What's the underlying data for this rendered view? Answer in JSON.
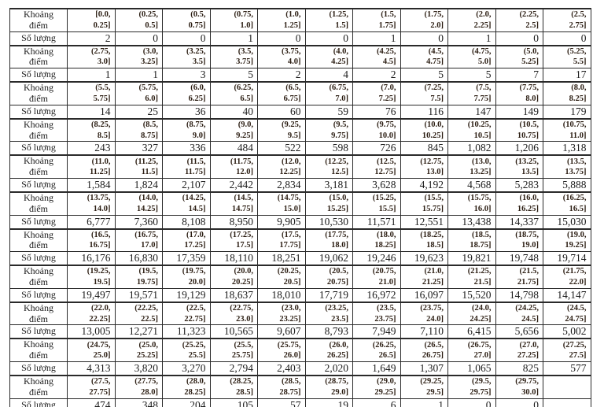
{
  "table": {
    "interval_label_lines": [
      "Khoảng",
      "điểm"
    ],
    "count_label": "Số lượng",
    "pairs": [
      {
        "intervals": [
          "[0.0, 0.25]",
          "(0.25, 0.5]",
          "(0.5, 0.75]",
          "(0.75, 1.0]",
          "(1.0, 1.25]",
          "(1.25, 1.5]",
          "(1.5, 1.75]",
          "(1.75, 2.0]",
          "(2.0, 2.25]",
          "(2.25, 2.5]",
          "(2.5, 2.75]"
        ],
        "counts": [
          "2",
          "0",
          "0",
          "1",
          "0",
          "0",
          "1",
          "0",
          "1",
          "0",
          "0"
        ]
      },
      {
        "intervals": [
          "(2.75, 3.0]",
          "(3.0, 3.25]",
          "(3.25, 3.5]",
          "(3.5, 3.75]",
          "(3.75, 4.0]",
          "(4.0, 4.25]",
          "(4.25, 4.5]",
          "(4.5, 4.75]",
          "(4.75, 5.0]",
          "(5.0, 5.25]",
          "(5.25, 5.5]"
        ],
        "counts": [
          "1",
          "1",
          "3",
          "5",
          "2",
          "4",
          "2",
          "5",
          "5",
          "7",
          "17"
        ]
      },
      {
        "intervals": [
          "(5.5, 5.75]",
          "(5.75, 6.0]",
          "(6.0, 6.25]",
          "(6.25, 6.5]",
          "(6.5, 6.75]",
          "(6.75, 7.0]",
          "(7.0, 7.25]",
          "(7.25, 7.5]",
          "(7.5, 7.75]",
          "(7.75, 8.0]",
          "(8.0, 8.25]"
        ],
        "counts": [
          "14",
          "25",
          "36",
          "40",
          "60",
          "59",
          "76",
          "116",
          "147",
          "149",
          "179"
        ]
      },
      {
        "intervals": [
          "(8.25, 8.5]",
          "(8.5, 8.75]",
          "(8.75, 9.0]",
          "(9.0, 9.25]",
          "(9.25, 9.5]",
          "(9.5, 9.75]",
          "(9.75, 10.0]",
          "(10.0, 10.25]",
          "(10.25, 10.5]",
          "(10.5, 10.75]",
          "(10.75, 11.0]"
        ],
        "counts": [
          "243",
          "327",
          "336",
          "484",
          "522",
          "598",
          "726",
          "845",
          "1,082",
          "1,206",
          "1,318"
        ]
      },
      {
        "intervals": [
          "(11.0, 11.25]",
          "(11.25, 11.5]",
          "(11.5, 11.75]",
          "(11.75, 12.0]",
          "(12.0, 12.25]",
          "(12.25, 12.5]",
          "(12.5, 12.75]",
          "(12.75, 13.0]",
          "(13.0, 13.25]",
          "(13.25, 13.5]",
          "(13.5, 13.75]"
        ],
        "counts": [
          "1,584",
          "1,824",
          "2,107",
          "2,442",
          "2,834",
          "3,181",
          "3,628",
          "4,192",
          "4,568",
          "5,283",
          "5,888"
        ]
      },
      {
        "intervals": [
          "(13.75, 14.0]",
          "(14.0, 14.25]",
          "(14.25, 14.5]",
          "(14.5, 14.75]",
          "(14.75, 15.0]",
          "(15.0, 15.25]",
          "(15.25, 15.5]",
          "(15.5, 15.75]",
          "(15.75, 16.0]",
          "(16.0, 16.25]",
          "(16.25, 16.5]"
        ],
        "counts": [
          "6,777",
          "7,360",
          "8,108",
          "8,950",
          "9,905",
          "10,530",
          "11,571",
          "12,551",
          "13,438",
          "14,337",
          "15,030"
        ]
      },
      {
        "intervals": [
          "(16.5, 16.75]",
          "(16.75, 17.0]",
          "(17.0, 17.25]",
          "(17.25, 17.5]",
          "(17.5, 17.75]",
          "(17.75, 18.0]",
          "(18.0, 18.25]",
          "(18.25, 18.5]",
          "(18.5, 18.75]",
          "(18.75, 19.0]",
          "(19.0, 19.25]"
        ],
        "counts": [
          "16,176",
          "16,830",
          "17,359",
          "18,110",
          "18,251",
          "19,062",
          "19,246",
          "19,623",
          "19,821",
          "19,748",
          "19,714"
        ]
      },
      {
        "intervals": [
          "(19.25, 19.5]",
          "(19.5, 19.75]",
          "(19.75, 20.0]",
          "(20.0, 20.25]",
          "(20.25, 20.5]",
          "(20.5, 20.75]",
          "(20.75, 21.0]",
          "(21.0, 21.25]",
          "(21.25, 21.5]",
          "(21.5, 21.75]",
          "(21.75, 22.0]"
        ],
        "counts": [
          "19,497",
          "19,571",
          "19,129",
          "18,637",
          "18,010",
          "17,719",
          "16,972",
          "16,097",
          "15,520",
          "14,798",
          "14,147"
        ]
      },
      {
        "intervals": [
          "(22.0, 22.25]",
          "(22.25, 22.5]",
          "(22.5, 22.75]",
          "(22.75, 23.0]",
          "(23.0, 23.25]",
          "(23.25, 23.5]",
          "(23.5, 23.75]",
          "(23.75, 24.0]",
          "(24.0, 24.25]",
          "(24.25, 24.5]",
          "(24.5, 24.75]"
        ],
        "counts": [
          "13,005",
          "12,271",
          "11,323",
          "10,565",
          "9,607",
          "8,793",
          "7,949",
          "7,110",
          "6,415",
          "5,656",
          "5,002"
        ]
      },
      {
        "intervals": [
          "(24.75, 25.0]",
          "(25.0, 25.25]",
          "(25.25, 25.5]",
          "(25.5, 25.75]",
          "(25.75, 26.0]",
          "(26.0, 26.25]",
          "(26.25, 26.5]",
          "(26.5, 26.75]",
          "(26.75, 27.0]",
          "(27.0, 27.25]",
          "(27.25, 27.5]"
        ],
        "counts": [
          "4,313",
          "3,820",
          "3,270",
          "2,794",
          "2,403",
          "2,020",
          "1,649",
          "1,307",
          "1,065",
          "825",
          "577"
        ]
      },
      {
        "intervals": [
          "(27.5, 27.75]",
          "(27.75, 28.0]",
          "(28.0, 28.25]",
          "(28.25, 28.5]",
          "(28.5, 28.75]",
          "(28.75, 29.0]",
          "(29.0, 29.25]",
          "(29.25, 29.5]",
          "(29.5, 29.75]",
          "(29.75, 30.0]",
          ""
        ],
        "counts": [
          "474",
          "348",
          "204",
          "105",
          "57",
          "19",
          "6",
          "1",
          "0",
          "0",
          ""
        ]
      }
    ]
  }
}
